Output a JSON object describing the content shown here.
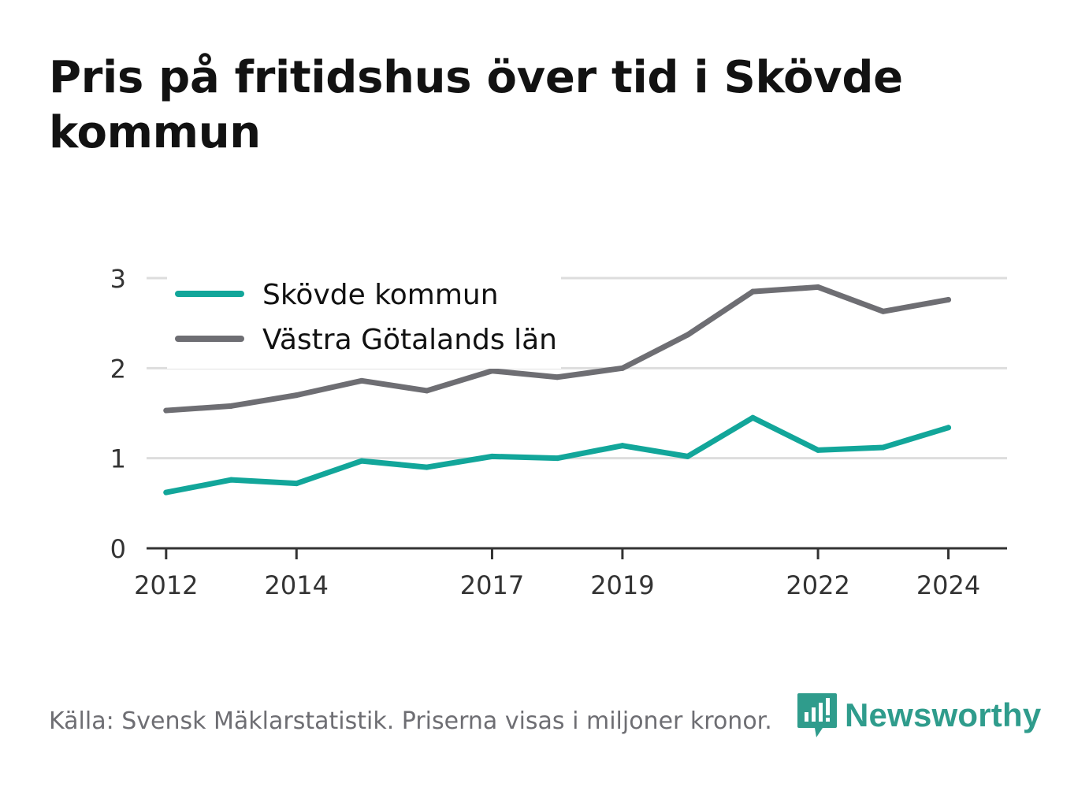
{
  "title": "Pris på fritidshus över tid i Skövde kommun",
  "source": "Källa: Svensk Mäklarstatistik. Priserna visas i miljoner kronor.",
  "brand": {
    "name": "Newsworthy"
  },
  "colors": {
    "skovde": "#12a69a",
    "vastra": "#6e6e73",
    "grid": "#dddddd",
    "axis": "#333333",
    "brand": "#2f9c8c"
  },
  "chart_data": {
    "type": "line",
    "title": "Pris på fritidshus över tid i Skövde kommun",
    "xlabel": "",
    "ylabel": "",
    "x": [
      2012,
      2013,
      2014,
      2015,
      2016,
      2017,
      2018,
      2019,
      2020,
      2021,
      2022,
      2023,
      2024
    ],
    "x_ticks": [
      2012,
      2014,
      2017,
      2019,
      2022,
      2024
    ],
    "y_ticks": [
      0,
      1,
      2,
      3
    ],
    "ylim": [
      0,
      3
    ],
    "grid": true,
    "legend_position": "top-left",
    "series": [
      {
        "name": "Skövde kommun",
        "color": "#12a69a",
        "values": [
          0.62,
          0.76,
          0.72,
          0.97,
          0.9,
          1.02,
          1.0,
          1.14,
          1.02,
          1.45,
          1.09,
          1.12,
          1.34
        ]
      },
      {
        "name": "Västra Götalands län",
        "color": "#6e6e73",
        "values": [
          1.53,
          1.58,
          1.7,
          1.86,
          1.75,
          1.97,
          1.9,
          2.0,
          2.37,
          2.85,
          2.9,
          2.63,
          2.76
        ]
      }
    ]
  }
}
